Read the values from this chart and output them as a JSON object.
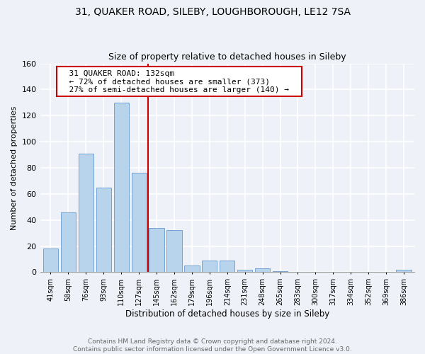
{
  "title_line1": "31, QUAKER ROAD, SILEBY, LOUGHBOROUGH, LE12 7SA",
  "title_line2": "Size of property relative to detached houses in Sileby",
  "xlabel": "Distribution of detached houses by size in Sileby",
  "ylabel": "Number of detached properties",
  "bar_labels": [
    "41sqm",
    "58sqm",
    "76sqm",
    "93sqm",
    "110sqm",
    "127sqm",
    "145sqm",
    "162sqm",
    "179sqm",
    "196sqm",
    "214sqm",
    "231sqm",
    "248sqm",
    "265sqm",
    "283sqm",
    "300sqm",
    "317sqm",
    "334sqm",
    "352sqm",
    "369sqm",
    "386sqm"
  ],
  "bar_values": [
    18,
    46,
    91,
    65,
    130,
    76,
    34,
    32,
    5,
    9,
    9,
    2,
    3,
    1,
    0,
    0,
    0,
    0,
    0,
    0,
    2
  ],
  "bar_color": "#b8d4ec",
  "bar_edge_color": "#6699cc",
  "vline_x_idx": 5,
  "vline_color": "#cc0000",
  "annotation_title": "31 QUAKER ROAD: 132sqm",
  "annotation_line1": "← 72% of detached houses are smaller (373)",
  "annotation_line2": "27% of semi-detached houses are larger (140) →",
  "annotation_box_color": "#ffffff",
  "annotation_box_edge": "#cc0000",
  "ylim": [
    0,
    160
  ],
  "yticks": [
    0,
    20,
    40,
    60,
    80,
    100,
    120,
    140,
    160
  ],
  "footer_line1": "Contains HM Land Registry data © Crown copyright and database right 2024.",
  "footer_line2": "Contains public sector information licensed under the Open Government Licence v3.0.",
  "bg_color": "#eef2f8",
  "grid_color": "#ffffff"
}
